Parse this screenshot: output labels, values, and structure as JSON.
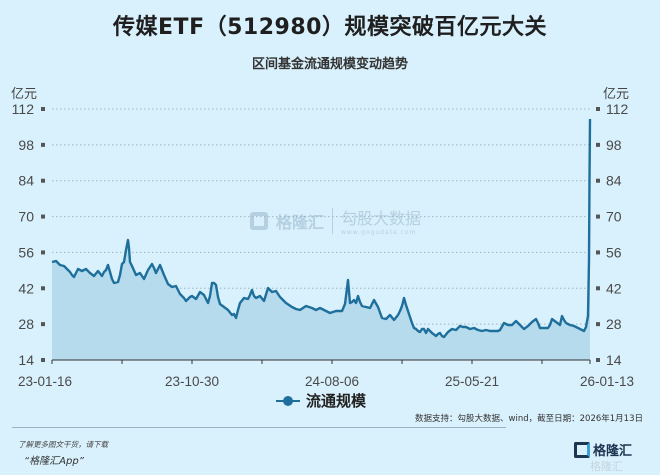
{
  "header": {
    "title": "传媒ETF（512980）规模突破百亿元大关",
    "subtitle": "区间基金流通规模变动趋势"
  },
  "axes": {
    "unit_left": "亿元",
    "unit_right": "亿元"
  },
  "legend": {
    "label": "流通规模",
    "color": "#1f6f9c"
  },
  "watermark": {
    "brand": "格隆汇",
    "partner": "勾股大数据",
    "url": "www.gogudata.com"
  },
  "source_note": "数据支持：勾股大数据、wind，截至日期：2026年1月13日",
  "footer": {
    "tip": "了解更多图文干货，请下载",
    "app": "“格隆汇App”",
    "logo_text": "格隆汇"
  },
  "colors": {
    "background": "#d9f1fc",
    "line": "#1f6f9c",
    "area": "#b6dbed",
    "grid": "#9fb6c4"
  },
  "chart_data": {
    "type": "area",
    "title": "区间基金流通规模变动趋势",
    "xlabel": "",
    "ylabel": "亿元",
    "ylim": [
      14,
      112
    ],
    "yticks": [
      14,
      28,
      42,
      56,
      70,
      84,
      98,
      112
    ],
    "x_tick_labels": [
      "23-01-16",
      "23-10-30",
      "24-08-06",
      "25-05-21",
      "26-01-13"
    ],
    "grid": true,
    "legend_position": "bottom",
    "series": [
      {
        "name": "流通规模",
        "x": [
          "23-01-16",
          "23-02",
          "23-03",
          "23-04",
          "23-05",
          "23-06",
          "23-07",
          "23-08",
          "23-09",
          "23-10-30",
          "23-12",
          "24-02",
          "24-04",
          "24-06",
          "24-08-06",
          "24-09",
          "24-10",
          "24-11",
          "24-12",
          "25-01",
          "25-02",
          "25-03",
          "25-05-21",
          "25-07",
          "25-09",
          "25-11",
          "25-12",
          "26-01-06",
          "26-01-13"
        ],
        "values": [
          52.2,
          49.3,
          47.2,
          46.8,
          44.0,
          60.8,
          47.0,
          51.4,
          42.5,
          39.0,
          44.0,
          30.4,
          42.0,
          36.0,
          33.1,
          45.2,
          37.4,
          29.6,
          38.2,
          24.9,
          23.0,
          27.3,
          25.3,
          29.2,
          30.0,
          31.2,
          25.7,
          31.2,
          107.9
        ]
      }
    ]
  }
}
